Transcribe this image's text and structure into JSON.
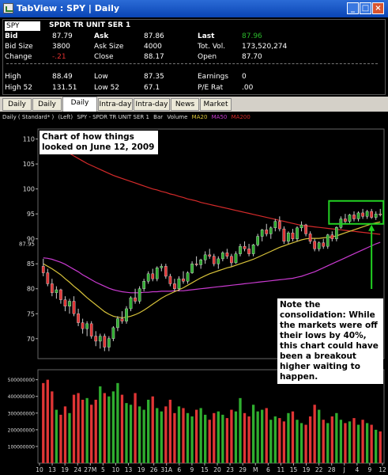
{
  "window": {
    "title": "TabView : SPY | Daily",
    "minimize_label": "_",
    "maximize_label": "□",
    "close_label": "×"
  },
  "quote": {
    "symbol": "SPY",
    "name": "SPDR TR UNIT SER 1",
    "bid_label": "Bid",
    "bid": "87.79",
    "ask_label": "Ask",
    "ask": "87.86",
    "last_label": "Last",
    "last": "87.96",
    "bid_size_label": "Bid Size",
    "bid_size": "3800",
    "ask_size_label": "Ask Size",
    "ask_size": "4000",
    "tot_vol_label": "Tot. Vol.",
    "tot_vol": "173,520,274",
    "change_label": "Change",
    "change": "-.21",
    "close_label": "Close",
    "close": "88.17",
    "open_label": "Open",
    "open": "87.70",
    "high_label": "High",
    "high": "88.49",
    "low_label": "Low",
    "low": "87.35",
    "earnings_label": "Earnings",
    "earnings": "0",
    "high52_label": "High 52",
    "high52": "131.51",
    "low52_label": "Low 52",
    "low52": "67.1",
    "pe_label": "P/E Rat",
    "pe": ".00"
  },
  "tabs": [
    {
      "label": "Daily",
      "active": false
    },
    {
      "label": "Daily",
      "active": false
    },
    {
      "label": "Daily",
      "active": true
    },
    {
      "label": "Intra-day",
      "active": false
    },
    {
      "label": "Intra-day",
      "active": false
    },
    {
      "label": "News",
      "active": false
    },
    {
      "label": "Market",
      "active": false
    }
  ],
  "chart_header": {
    "mode": "Daily ( Standard* )",
    "axis": "(Left)",
    "symbol_desc": "SPY - SPDR TR UNIT SER 1",
    "type": "Bar",
    "volume": "Volume",
    "ma20": "MA20",
    "ma50": "MA50",
    "ma200": "MA200"
  },
  "annotations": {
    "title_note": "Chart of how things looked on June 12, 2009",
    "consolidation_note": "Note the consolidation: While the markets were off their lows by 40%, this chart could have been a breakout higher waiting to happen."
  },
  "colors": {
    "up": "#2fae2f",
    "down": "#e03535",
    "ma20": "#d7c23a",
    "ma50": "#c93ad0",
    "ma200": "#d42a2a",
    "highlight": "#22d022",
    "last_price": "#2bb82b",
    "change": "#e03030"
  },
  "chart_data": {
    "type": "candlestick",
    "price_axis": {
      "ticks": [
        70,
        75,
        80,
        85,
        90,
        95,
        100,
        105,
        110
      ],
      "range": [
        66,
        112
      ],
      "last_label": "87.95"
    },
    "volume_axis": {
      "ticks": [
        100000000,
        200000000,
        300000000,
        400000000,
        500000000
      ],
      "labels": [
        "100000000",
        "200000000",
        "300000000",
        "400000000",
        "500000000"
      ],
      "range": [
        0,
        560000000
      ]
    },
    "x_tick_labels": [
      "10",
      "13",
      "19",
      "24",
      "27M",
      "5",
      "10",
      "13",
      "19",
      "26",
      "31A",
      "6",
      "9",
      "15",
      "20",
      "23",
      "29",
      "M",
      "6",
      "11",
      "15",
      "19",
      "22",
      "28",
      "J",
      "4",
      "9",
      "12"
    ],
    "ohlc": [
      [
        84.5,
        86.0,
        82.5,
        83.2
      ],
      [
        83.2,
        84.0,
        80.5,
        81.0
      ],
      [
        81.0,
        82.0,
        78.5,
        79.2
      ],
      [
        79.2,
        80.5,
        78.0,
        79.8
      ],
      [
        79.8,
        80.0,
        77.0,
        77.8
      ],
      [
        77.8,
        78.5,
        75.5,
        76.5
      ],
      [
        76.5,
        78.0,
        75.0,
        77.5
      ],
      [
        77.5,
        78.5,
        74.5,
        75.0
      ],
      [
        75.0,
        76.0,
        72.5,
        73.2
      ],
      [
        73.2,
        74.0,
        71.0,
        72.0
      ],
      [
        72.0,
        73.5,
        70.5,
        73.0
      ],
      [
        73.0,
        73.5,
        70.0,
        70.5
      ],
      [
        70.5,
        71.5,
        68.5,
        69.5
      ],
      [
        69.5,
        71.0,
        68.0,
        70.5
      ],
      [
        70.5,
        71.0,
        67.5,
        68.3
      ],
      [
        68.3,
        70.5,
        67.5,
        70.0
      ],
      [
        70.0,
        72.5,
        69.5,
        72.2
      ],
      [
        72.2,
        74.5,
        71.5,
        74.0
      ],
      [
        74.0,
        75.5,
        73.0,
        73.5
      ],
      [
        73.5,
        76.5,
        73.0,
        76.0
      ],
      [
        76.0,
        78.5,
        75.5,
        78.2
      ],
      [
        78.2,
        80.0,
        77.0,
        77.5
      ],
      [
        77.5,
        80.5,
        77.0,
        80.0
      ],
      [
        80.0,
        82.0,
        79.5,
        81.5
      ],
      [
        81.5,
        83.5,
        81.0,
        83.0
      ],
      [
        83.0,
        84.0,
        81.5,
        82.0
      ],
      [
        82.0,
        84.5,
        81.5,
        84.2
      ],
      [
        84.2,
        85.0,
        83.5,
        84.5
      ],
      [
        84.5,
        85.0,
        82.0,
        82.5
      ],
      [
        82.5,
        83.0,
        80.5,
        81.0
      ],
      [
        81.0,
        82.0,
        79.5,
        80.0
      ],
      [
        80.0,
        82.5,
        79.5,
        82.0
      ],
      [
        82.0,
        83.5,
        81.0,
        81.5
      ],
      [
        81.5,
        83.5,
        81.0,
        83.2
      ],
      [
        83.2,
        85.5,
        83.0,
        85.0
      ],
      [
        85.0,
        86.5,
        84.5,
        84.8
      ],
      [
        84.8,
        86.0,
        84.0,
        85.8
      ],
      [
        85.8,
        87.5,
        85.0,
        86.8
      ],
      [
        86.8,
        88.0,
        86.0,
        86.5
      ],
      [
        86.5,
        87.0,
        84.5,
        85.0
      ],
      [
        85.0,
        86.5,
        84.0,
        86.0
      ],
      [
        86.0,
        87.5,
        85.5,
        87.2
      ],
      [
        87.2,
        88.0,
        86.0,
        86.5
      ],
      [
        86.5,
        87.0,
        84.5,
        85.2
      ],
      [
        85.2,
        87.5,
        85.0,
        87.0
      ],
      [
        87.0,
        89.0,
        86.5,
        88.5
      ],
      [
        88.5,
        89.5,
        87.5,
        88.0
      ],
      [
        88.0,
        89.0,
        86.5,
        87.0
      ],
      [
        87.0,
        89.0,
        86.5,
        88.8
      ],
      [
        88.8,
        91.0,
        88.5,
        90.5
      ],
      [
        90.5,
        92.0,
        89.5,
        91.8
      ],
      [
        91.8,
        93.0,
        90.5,
        91.0
      ],
      [
        91.0,
        92.5,
        90.0,
        92.2
      ],
      [
        92.2,
        94.0,
        91.5,
        93.5
      ],
      [
        93.5,
        94.5,
        91.5,
        92.0
      ],
      [
        92.0,
        92.5,
        89.0,
        89.5
      ],
      [
        89.5,
        91.5,
        89.0,
        91.2
      ],
      [
        91.2,
        92.0,
        89.5,
        90.0
      ],
      [
        90.0,
        92.5,
        89.5,
        92.2
      ],
      [
        92.2,
        93.5,
        91.5,
        92.8
      ],
      [
        92.8,
        93.0,
        90.5,
        91.0
      ],
      [
        91.0,
        91.5,
        89.0,
        89.5
      ],
      [
        89.5,
        90.0,
        87.5,
        88.0
      ],
      [
        88.0,
        89.5,
        87.5,
        89.2
      ],
      [
        89.2,
        90.0,
        88.0,
        88.5
      ],
      [
        88.5,
        91.0,
        88.0,
        90.8
      ],
      [
        90.8,
        91.5,
        89.5,
        90.0
      ],
      [
        90.0,
        92.5,
        89.5,
        92.3
      ],
      [
        92.3,
        94.5,
        92.0,
        94.0
      ],
      [
        94.0,
        95.0,
        93.0,
        93.5
      ],
      [
        93.5,
        95.0,
        93.0,
        94.8
      ],
      [
        94.8,
        95.5,
        93.5,
        94.0
      ],
      [
        94.0,
        95.5,
        93.5,
        95.2
      ],
      [
        95.2,
        96.0,
        94.0,
        94.5
      ],
      [
        94.5,
        95.8,
        94.0,
        95.5
      ],
      [
        95.5,
        96.0,
        94.0,
        94.3
      ],
      [
        94.3,
        95.5,
        93.8,
        95.0
      ],
      [
        95.0,
        96.0,
        94.5,
        94.8
      ]
    ],
    "volume": [
      480,
      500,
      430,
      320,
      290,
      340,
      300,
      410,
      420,
      380,
      390,
      350,
      380,
      460,
      420,
      400,
      430,
      480,
      410,
      360,
      350,
      420,
      340,
      320,
      380,
      400,
      330,
      310,
      340,
      380,
      300,
      340,
      330,
      300,
      280,
      320,
      330,
      290,
      260,
      300,
      310,
      290,
      270,
      320,
      310,
      390,
      300,
      280,
      350,
      310,
      320,
      330,
      260,
      280,
      270,
      250,
      300,
      310,
      260,
      240,
      230,
      280,
      350,
      320,
      260,
      240,
      280,
      300,
      260,
      240,
      250,
      270,
      230,
      260,
      240,
      230,
      200,
      190
    ],
    "ma20": [
      85,
      84.5,
      84,
      83.4,
      82.8,
      82,
      81.3,
      80.5,
      79.8,
      79,
      78.2,
      77.5,
      76.8,
      76.1,
      75.4,
      74.9,
      74.5,
      74.3,
      74.2,
      74.3,
      74.5,
      74.8,
      75.2,
      75.7,
      76.3,
      76.9,
      77.5,
      78.1,
      78.6,
      79,
      79.4,
      79.8,
      80.2,
      80.7,
      81.2,
      81.7,
      82.2,
      82.6,
      83,
      83.3,
      83.6,
      83.9,
      84.2,
      84.4,
      84.7,
      85,
      85.3,
      85.6,
      85.9,
      86.3,
      86.7,
      87.1,
      87.5,
      87.9,
      88.3,
      88.6,
      88.9,
      89.2,
      89.5,
      89.8,
      90,
      90.1,
      90.1,
      90.1,
      90.2,
      90.3,
      90.4,
      90.6,
      90.9,
      91.2,
      91.5,
      91.8,
      92.1,
      92.4,
      92.7,
      93,
      93.2,
      93.4
    ],
    "ma50": [
      86.2,
      86.1,
      85.9,
      85.6,
      85.3,
      84.9,
      84.4,
      83.9,
      83.4,
      82.8,
      82.3,
      81.8,
      81.3,
      80.9,
      80.5,
      80.1,
      79.8,
      79.6,
      79.4,
      79.3,
      79.2,
      79.2,
      79.2,
      79.3,
      79.3,
      79.4,
      79.4,
      79.5,
      79.5,
      79.5,
      79.6,
      79.6,
      79.6,
      79.7,
      79.8,
      79.9,
      80,
      80.1,
      80.2,
      80.3,
      80.4,
      80.5,
      80.6,
      80.7,
      80.8,
      80.9,
      81,
      81.1,
      81.2,
      81.3,
      81.4,
      81.5,
      81.6,
      81.7,
      81.8,
      81.9,
      82,
      82.1,
      82.3,
      82.5,
      82.8,
      83.1,
      83.4,
      83.8,
      84.2,
      84.6,
      85.0,
      85.4,
      85.8,
      86.2,
      86.6,
      87.0,
      87.4,
      87.8,
      88.2,
      88.6,
      89.0,
      89.3
    ],
    "ma200": [
      111,
      110.3,
      109.6,
      108.9,
      108.3,
      107.7,
      107.1,
      106.6,
      106.1,
      105.6,
      105.1,
      104.7,
      104.3,
      103.9,
      103.5,
      103.1,
      102.7,
      102.4,
      102.1,
      101.8,
      101.5,
      101.2,
      100.9,
      100.6,
      100.3,
      100.0,
      99.8,
      99.5,
      99.3,
      99.0,
      98.8,
      98.5,
      98.3,
      98.0,
      97.8,
      97.6,
      97.3,
      97.1,
      96.9,
      96.7,
      96.5,
      96.3,
      96.1,
      95.9,
      95.7,
      95.5,
      95.3,
      95.1,
      94.9,
      94.7,
      94.5,
      94.3,
      94.1,
      93.9,
      93.7,
      93.5,
      93.3,
      93.1,
      92.9,
      92.7,
      92.6,
      92.5,
      92.4,
      92.3,
      92.2,
      92.1,
      92.0,
      91.9,
      91.8,
      91.7,
      91.6,
      91.5,
      91.4,
      91.3,
      91.2,
      91.1,
      91.0,
      90.9
    ]
  }
}
